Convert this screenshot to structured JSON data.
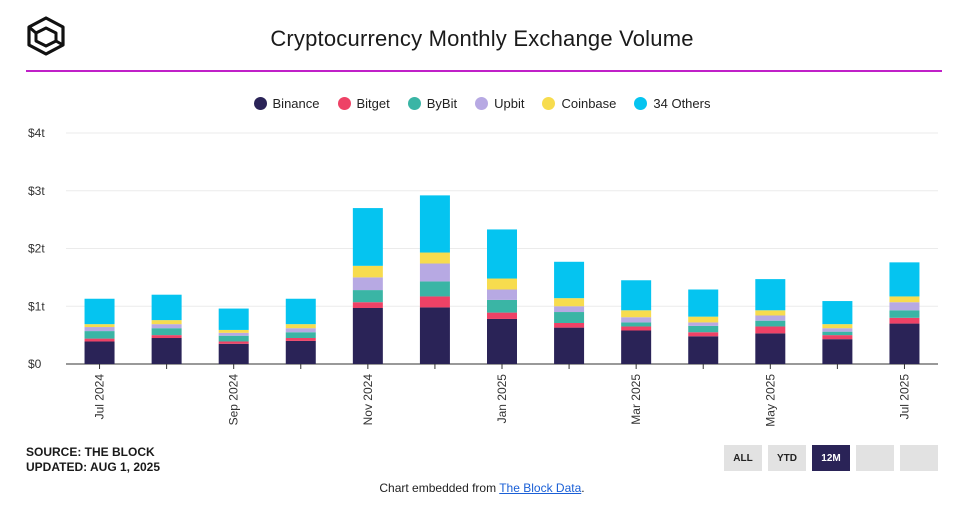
{
  "header": {
    "title": "Cryptocurrency Monthly Exchange Volume",
    "logo_icon": "the-block-cube-logo"
  },
  "footer": {
    "source": "SOURCE: THE BLOCK",
    "updated": "UPDATED: AUG 1, 2025",
    "embed_prefix": "Chart embedded from ",
    "embed_link": "The Block Data",
    "embed_suffix": "."
  },
  "range_buttons": [
    {
      "label": "ALL",
      "active": false
    },
    {
      "label": "YTD",
      "active": false
    },
    {
      "label": "12M",
      "active": true
    },
    {
      "label": "",
      "active": false
    },
    {
      "label": "",
      "active": false
    }
  ],
  "chart_data": {
    "type": "bar",
    "stacked": true,
    "title": "Cryptocurrency Monthly Exchange Volume",
    "xlabel": "",
    "ylabel": "",
    "unit": "trillion USD",
    "ylim": [
      0,
      4
    ],
    "yticks": [
      {
        "value": 0,
        "label": "$0"
      },
      {
        "value": 1,
        "label": "$1t"
      },
      {
        "value": 2,
        "label": "$2t"
      },
      {
        "value": 3,
        "label": "$3t"
      },
      {
        "value": 4,
        "label": "$4t"
      }
    ],
    "grid": true,
    "legend_position": "top-center",
    "categories": [
      "Jul 2024",
      "Aug 2024",
      "Sep 2024",
      "Oct 2024",
      "Nov 2024",
      "Dec 2024",
      "Jan 2025",
      "Feb 2025",
      "Mar 2025",
      "Apr 2025",
      "May 2025",
      "Jun 2025",
      "Jul 2025"
    ],
    "x_tick_labels": [
      "Jul 2024",
      "",
      "Sep 2024",
      "",
      "Nov 2024",
      "",
      "Jan 2025",
      "",
      "Mar 2025",
      "",
      "May 2025",
      "",
      "Jul 2025"
    ],
    "series": [
      {
        "name": "Binance",
        "color": "#2a2357",
        "values": [
          0.39,
          0.45,
          0.35,
          0.4,
          0.97,
          0.98,
          0.78,
          0.63,
          0.58,
          0.48,
          0.53,
          0.43,
          0.7
        ]
      },
      {
        "name": "Bitget",
        "color": "#ee4266",
        "values": [
          0.05,
          0.05,
          0.04,
          0.05,
          0.1,
          0.19,
          0.11,
          0.08,
          0.07,
          0.07,
          0.12,
          0.07,
          0.1
        ]
      },
      {
        "name": "ByBit",
        "color": "#3ab5a5",
        "values": [
          0.13,
          0.12,
          0.1,
          0.1,
          0.21,
          0.26,
          0.22,
          0.19,
          0.07,
          0.11,
          0.1,
          0.06,
          0.13
        ]
      },
      {
        "name": "Upbit",
        "color": "#b7a9e3",
        "values": [
          0.07,
          0.07,
          0.05,
          0.07,
          0.22,
          0.31,
          0.18,
          0.1,
          0.09,
          0.06,
          0.09,
          0.06,
          0.14
        ]
      },
      {
        "name": "Coinbase",
        "color": "#f7dc4e",
        "values": [
          0.05,
          0.07,
          0.05,
          0.07,
          0.2,
          0.19,
          0.19,
          0.14,
          0.12,
          0.1,
          0.09,
          0.07,
          0.1
        ]
      },
      {
        "name": "34 Others",
        "color": "#05c4f0",
        "values": [
          0.44,
          0.44,
          0.37,
          0.44,
          1.0,
          0.99,
          0.85,
          0.63,
          0.52,
          0.47,
          0.54,
          0.4,
          0.59
        ]
      }
    ]
  }
}
